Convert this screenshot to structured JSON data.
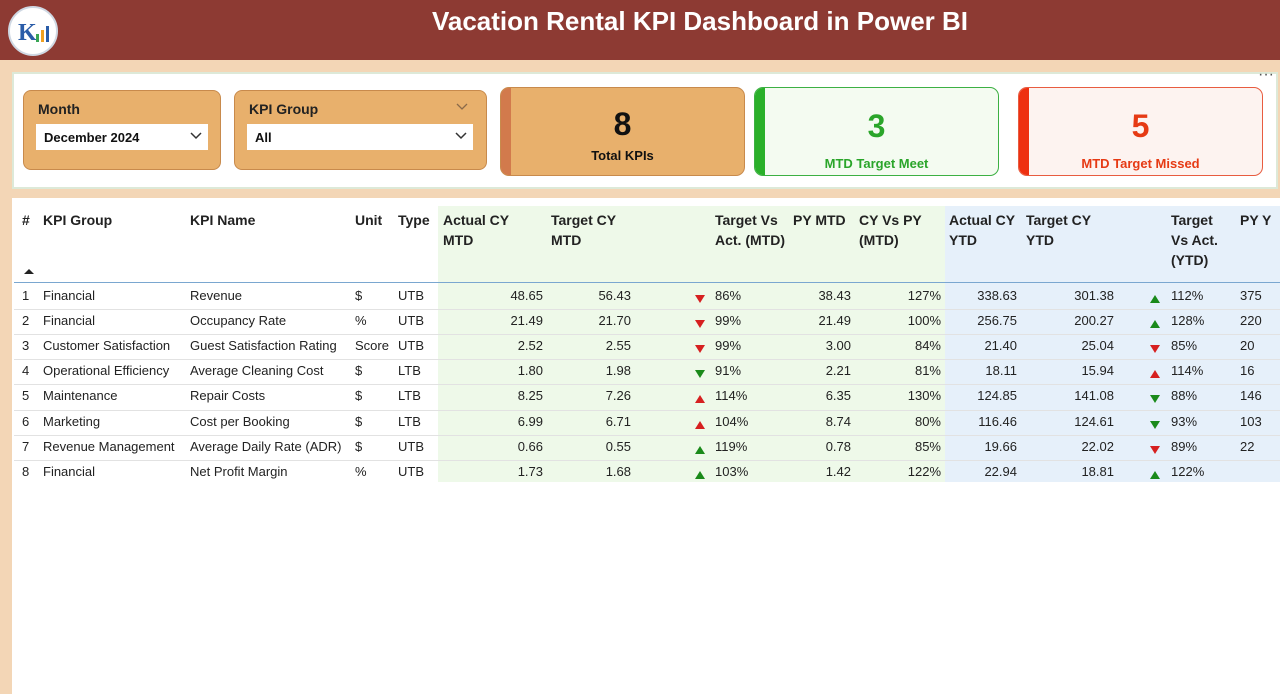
{
  "header": {
    "title": "Vacation Rental KPI Dashboard in Power BI"
  },
  "filters": [
    {
      "label": "Month",
      "value": "December 2024"
    },
    {
      "label": "KPI Group",
      "value": "All"
    }
  ],
  "cards": [
    {
      "value": "8",
      "label": "Total KPIs"
    },
    {
      "value": "3",
      "label": "MTD Target Meet"
    },
    {
      "value": "5",
      "label": "MTD Target Missed"
    }
  ],
  "table": {
    "columns": [
      "#",
      "KPI Group",
      "KPI Name",
      "Unit",
      "Type",
      "Actual CY MTD",
      "Target CY MTD",
      "Target Vs Act. (MTD)",
      "PY MTD",
      "CY Vs PY (MTD)",
      "Actual CY YTD",
      "Target CY YTD",
      "Target Vs Act. (YTD)",
      "PY Y"
    ],
    "rows": [
      {
        "cells": [
          "1",
          "Financial",
          "Revenue",
          "$",
          "UTB",
          "48.65",
          "56.43",
          "86%",
          "38.43",
          "127%",
          "338.63",
          "301.38",
          "112%",
          "375"
        ],
        "mtd_icon": {
          "direction": "down",
          "color": "#d62020"
        },
        "ytd_icon": {
          "direction": "up",
          "color": "#1a8a1a"
        }
      },
      {
        "cells": [
          "2",
          "Financial",
          "Occupancy Rate",
          "%",
          "UTB",
          "21.49",
          "21.70",
          "99%",
          "21.49",
          "100%",
          "256.75",
          "200.27",
          "128%",
          "220"
        ],
        "mtd_icon": {
          "direction": "down",
          "color": "#d62020"
        },
        "ytd_icon": {
          "direction": "up",
          "color": "#1a8a1a"
        }
      },
      {
        "cells": [
          "3",
          "Customer Satisfaction",
          "Guest Satisfaction Rating",
          "Score",
          "UTB",
          "2.52",
          "2.55",
          "99%",
          "3.00",
          "84%",
          "21.40",
          "25.04",
          "85%",
          "20"
        ],
        "mtd_icon": {
          "direction": "down",
          "color": "#d62020"
        },
        "ytd_icon": {
          "direction": "down",
          "color": "#d62020"
        }
      },
      {
        "cells": [
          "4",
          "Operational Efficiency",
          "Average Cleaning Cost",
          "$",
          "LTB",
          "1.80",
          "1.98",
          "91%",
          "2.21",
          "81%",
          "18.11",
          "15.94",
          "114%",
          "16"
        ],
        "mtd_icon": {
          "direction": "down",
          "color": "#1a8a1a"
        },
        "ytd_icon": {
          "direction": "up",
          "color": "#d62020"
        }
      },
      {
        "cells": [
          "5",
          "Maintenance",
          "Repair Costs",
          "$",
          "LTB",
          "8.25",
          "7.26",
          "114%",
          "6.35",
          "130%",
          "124.85",
          "141.08",
          "88%",
          "146"
        ],
        "mtd_icon": {
          "direction": "up",
          "color": "#d62020"
        },
        "ytd_icon": {
          "direction": "down",
          "color": "#1a8a1a"
        }
      },
      {
        "cells": [
          "6",
          "Marketing",
          "Cost per Booking",
          "$",
          "LTB",
          "6.99",
          "6.71",
          "104%",
          "8.74",
          "80%",
          "116.46",
          "124.61",
          "93%",
          "103"
        ],
        "mtd_icon": {
          "direction": "up",
          "color": "#d62020"
        },
        "ytd_icon": {
          "direction": "down",
          "color": "#1a8a1a"
        }
      },
      {
        "cells": [
          "7",
          "Revenue Management",
          "Average Daily Rate (ADR)",
          "$",
          "UTB",
          "0.66",
          "0.55",
          "119%",
          "0.78",
          "85%",
          "19.66",
          "22.02",
          "89%",
          "22"
        ],
        "mtd_icon": {
          "direction": "up",
          "color": "#1a8a1a"
        },
        "ytd_icon": {
          "direction": "down",
          "color": "#d62020"
        }
      },
      {
        "cells": [
          "8",
          "Financial",
          "Net Profit Margin",
          "%",
          "UTB",
          "1.73",
          "1.68",
          "103%",
          "1.42",
          "122%",
          "22.94",
          "18.81",
          "122%",
          null
        ],
        "mtd_icon": {
          "direction": "up",
          "color": "#1a8a1a"
        },
        "ytd_icon": {
          "direction": "up",
          "color": "#1a8a1a"
        }
      }
    ]
  }
}
